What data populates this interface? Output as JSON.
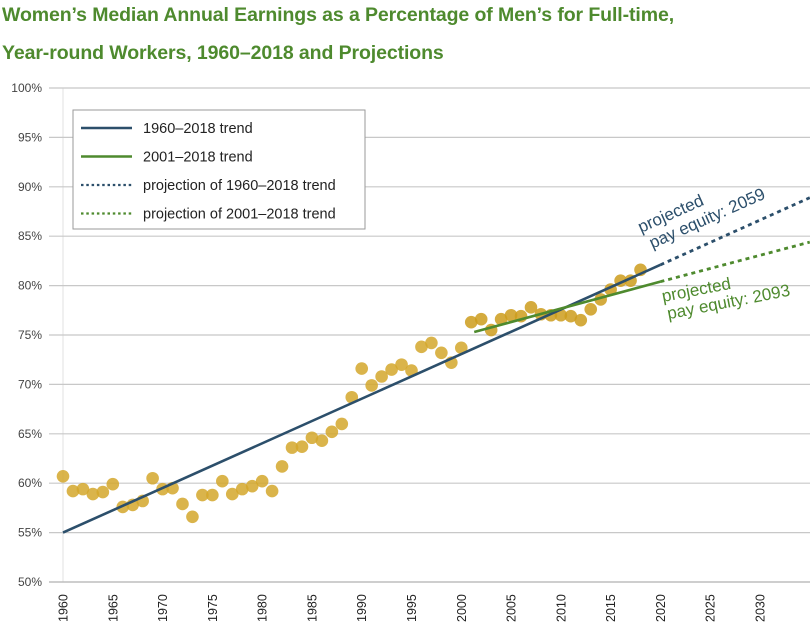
{
  "chart_data": {
    "type": "scatter",
    "title": "Women’s Median Annual Earnings as a Percentage of Men’s for Full-time, Year-round Workers, 1960–2018 and Projections",
    "title_lines": [
      "Women’s Median Annual Earnings as a Percentage of Men’s for Full-time,",
      "Year-round Workers, 1960–2018 and Projections"
    ],
    "xlabel": "",
    "ylabel": "",
    "xlim": [
      1960,
      2035
    ],
    "ylim": [
      50,
      100
    ],
    "grid": "horizontal",
    "x_ticks": [
      1960,
      1965,
      1970,
      1975,
      1980,
      1985,
      1990,
      1995,
      2000,
      2005,
      2010,
      2015,
      2020,
      2025,
      2030
    ],
    "x_tick_labels": [
      "1960",
      "1965",
      "1970",
      "1975",
      "1980",
      "1985",
      "1990",
      "1995",
      "2000",
      "2005",
      "2010",
      "2015",
      "2020",
      "2025",
      "2030"
    ],
    "y_ticks": [
      50,
      55,
      60,
      65,
      70,
      75,
      80,
      85,
      90,
      95,
      100
    ],
    "y_tick_labels": [
      "50%",
      "55%",
      "60%",
      "65%",
      "70%",
      "75%",
      "80%",
      "85%",
      "90%",
      "95%",
      "100%"
    ],
    "series": [
      {
        "name": "Women's earnings ratio",
        "kind": "points",
        "color": "#d4a72c",
        "x": [
          1960,
          1961,
          1962,
          1963,
          1964,
          1965,
          1966,
          1967,
          1968,
          1969,
          1970,
          1971,
          1972,
          1973,
          1974,
          1975,
          1976,
          1977,
          1978,
          1979,
          1980,
          1981,
          1982,
          1983,
          1984,
          1985,
          1986,
          1987,
          1988,
          1989,
          1990,
          1991,
          1992,
          1993,
          1994,
          1995,
          1996,
          1997,
          1998,
          1999,
          2000,
          2001,
          2002,
          2003,
          2004,
          2005,
          2006,
          2007,
          2008,
          2009,
          2010,
          2011,
          2012,
          2013,
          2014,
          2015,
          2016,
          2017,
          2018
        ],
        "values": [
          60.7,
          59.2,
          59.4,
          58.9,
          59.1,
          59.9,
          57.6,
          57.8,
          58.2,
          60.5,
          59.4,
          59.5,
          57.9,
          56.6,
          58.8,
          58.8,
          60.2,
          58.9,
          59.4,
          59.7,
          60.2,
          59.2,
          61.7,
          63.6,
          63.7,
          64.6,
          64.3,
          65.2,
          66.0,
          68.7,
          71.6,
          69.9,
          70.8,
          71.5,
          72.0,
          71.4,
          73.8,
          74.2,
          73.2,
          72.2,
          73.7,
          76.3,
          76.6,
          75.5,
          76.6,
          77.0,
          76.9,
          77.8,
          77.1,
          77.0,
          77.0,
          76.9,
          76.5,
          77.6,
          78.6,
          79.6,
          80.5,
          80.5,
          81.6
        ]
      },
      {
        "name": "1960–2018 trend",
        "kind": "line",
        "style": "solid",
        "color": "#2c4f6b",
        "x": [
          1960,
          2020
        ],
        "values": [
          55.0,
          82.1
        ]
      },
      {
        "name": "2001–2018 trend",
        "kind": "line",
        "style": "solid",
        "color": "#4e8a2e",
        "x": [
          2001.3,
          2020
        ],
        "values": [
          75.3,
          80.4
        ]
      },
      {
        "name": "projection of 1960–2018 trend",
        "kind": "line",
        "style": "dotted",
        "color": "#2c4f6b",
        "x": [
          2020,
          2035
        ],
        "values": [
          82.1,
          88.9
        ]
      },
      {
        "name": "projection of 2001–2018 trend",
        "kind": "line",
        "style": "dotted",
        "color": "#4e8a2e",
        "x": [
          2020,
          2035
        ],
        "values": [
          80.4,
          84.4
        ]
      }
    ],
    "legend": {
      "placement": "top-left",
      "entries": [
        {
          "label": "1960–2018 trend",
          "style": "solid",
          "color": "#2c4f6b"
        },
        {
          "label": "2001–2018 trend",
          "style": "solid",
          "color": "#4e8a2e"
        },
        {
          "label": "projection of 1960–2018 trend",
          "style": "dotted",
          "color": "#2c4f6b"
        },
        {
          "label": "projection of 2001–2018 trend",
          "style": "dotted",
          "color": "#4e8a2e"
        }
      ]
    },
    "annotations": [
      {
        "lines": [
          "projected",
          "pay equity: 2059"
        ],
        "color": "#2c4f6b",
        "near": "projection of 1960–2018 trend",
        "year": 2059
      },
      {
        "lines": [
          "projected",
          "pay equity: 2093"
        ],
        "color": "#4e8a2e",
        "near": "projection of 2001–2018 trend",
        "year": 2093
      }
    ]
  }
}
